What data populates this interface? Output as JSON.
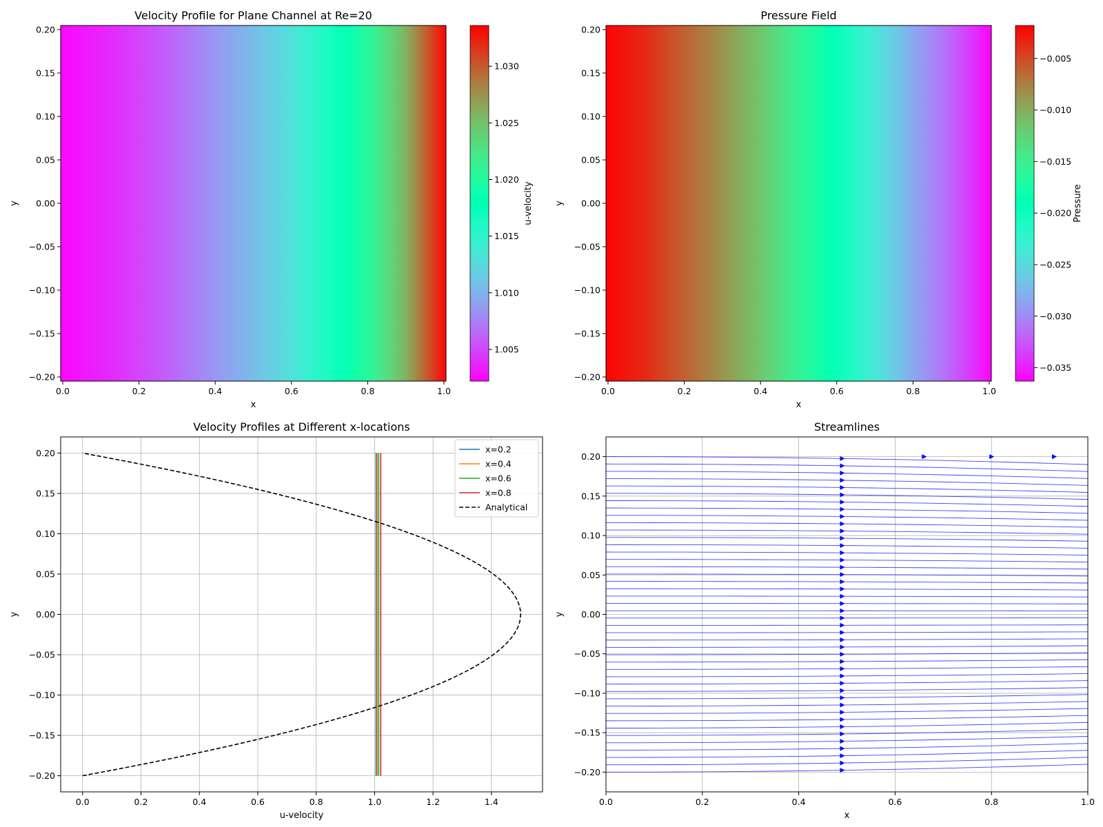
{
  "chart_data": [
    {
      "type": "heatmap",
      "title": "Velocity Profile for Plane Channel at Re=20",
      "xlabel": "x",
      "ylabel": "y",
      "xlim": [
        0,
        1
      ],
      "ylim": [
        -0.2,
        0.2
      ],
      "x_ticks": [
        "0.0",
        "0.2",
        "0.4",
        "0.6",
        "0.8",
        "1.0"
      ],
      "y_ticks": [
        "−0.20",
        "−0.15",
        "−0.10",
        "−0.05",
        "0.00",
        "0.05",
        "0.10",
        "0.15",
        "0.20"
      ],
      "field_x": [
        0.0,
        0.1,
        0.2,
        0.3,
        0.4,
        0.5,
        0.6,
        0.7,
        0.8,
        0.9,
        0.95,
        1.0
      ],
      "field_values": [
        1.0025,
        1.0035,
        1.0048,
        1.0065,
        1.0085,
        1.0105,
        1.013,
        1.0165,
        1.0205,
        1.0262,
        1.03,
        1.0335
      ],
      "colormap": "rainbow",
      "colorbar": {
        "label": "u-velocity",
        "range": [
          1.0022,
          1.0336
        ],
        "ticks": [
          1.005,
          1.01,
          1.015,
          1.02,
          1.025,
          1.03
        ],
        "tick_labels": [
          "1.005",
          "1.010",
          "1.015",
          "1.020",
          "1.025",
          "1.030"
        ]
      }
    },
    {
      "type": "heatmap",
      "title": "Pressure Field",
      "xlabel": "x",
      "ylabel": "y",
      "xlim": [
        0,
        1
      ],
      "ylim": [
        -0.2,
        0.2
      ],
      "x_ticks": [
        "0.0",
        "0.2",
        "0.4",
        "0.6",
        "0.8",
        "1.0"
      ],
      "y_ticks": [
        "−0.20",
        "−0.15",
        "−0.10",
        "−0.05",
        "0.00",
        "0.05",
        "0.10",
        "0.15",
        "0.20"
      ],
      "field_x": [
        0.0,
        0.1,
        0.2,
        0.3,
        0.4,
        0.5,
        0.6,
        0.7,
        0.8,
        0.9,
        1.0
      ],
      "field_values": [
        -0.002,
        -0.0035,
        -0.006,
        -0.0085,
        -0.0115,
        -0.0155,
        -0.0195,
        -0.024,
        -0.0285,
        -0.032,
        -0.0362
      ],
      "colormap": "rainbow",
      "colorbar": {
        "label": "Pressure",
        "range": [
          -0.0363,
          -0.0018
        ],
        "ticks": [
          -0.005,
          -0.01,
          -0.015,
          -0.02,
          -0.025,
          -0.03,
          -0.035
        ],
        "tick_labels": [
          "−0.005",
          "−0.010",
          "−0.015",
          "−0.020",
          "−0.025",
          "−0.030",
          "−0.035"
        ]
      }
    },
    {
      "type": "line",
      "title": "Velocity Profiles at Different x-locations",
      "xlabel": "u-velocity",
      "ylabel": "y",
      "xlim": [
        -0.075,
        1.575
      ],
      "ylim": [
        -0.22,
        0.22
      ],
      "grid": true,
      "legend": "top-right",
      "x_ticks": [
        0.0,
        0.2,
        0.4,
        0.6,
        0.8,
        1.0,
        1.2,
        1.4
      ],
      "x_tick_labels": [
        "0.0",
        "0.2",
        "0.4",
        "0.6",
        "0.8",
        "1.0",
        "1.2",
        "1.4"
      ],
      "y_ticks": [
        -0.2,
        -0.15,
        -0.1,
        -0.05,
        0.0,
        0.05,
        0.1,
        0.15,
        0.2
      ],
      "y_tick_labels": [
        "−0.20",
        "−0.15",
        "−0.10",
        "−0.05",
        "0.00",
        "0.05",
        "0.10",
        "0.15",
        "0.20"
      ],
      "series": [
        {
          "name": "x=0.2",
          "color": "#1f77b4",
          "style": "solid",
          "u": [
            1.005,
            1.005
          ],
          "y": [
            -0.2,
            0.2
          ]
        },
        {
          "name": "x=0.4",
          "color": "#ff7f0e",
          "style": "solid",
          "u": [
            1.009,
            1.009
          ],
          "y": [
            -0.2,
            0.2
          ]
        },
        {
          "name": "x=0.6",
          "color": "#2ca02c",
          "style": "solid",
          "u": [
            1.014,
            1.014
          ],
          "y": [
            -0.2,
            0.2
          ]
        },
        {
          "name": "x=0.8",
          "color": "#d62728",
          "style": "solid",
          "u": [
            1.021,
            1.021
          ],
          "y": [
            -0.2,
            0.2
          ]
        },
        {
          "name": "Analytical",
          "color": "#000000",
          "style": "dashed",
          "formula": "u = 1.5*(1-(y/0.2)^2)",
          "y_range": [
            -0.2,
            0.2
          ]
        }
      ]
    },
    {
      "type": "streamlines",
      "title": "Streamlines",
      "xlabel": "x",
      "ylabel": "y",
      "xlim": [
        0,
        1
      ],
      "ylim": [
        -0.225,
        0.225
      ],
      "grid": true,
      "line_color": "#0000ff",
      "x_ticks": [
        0.0,
        0.2,
        0.4,
        0.6,
        0.8,
        1.0
      ],
      "x_tick_labels": [
        "0.0",
        "0.2",
        "0.4",
        "0.6",
        "0.8",
        "1.0"
      ],
      "y_ticks": [
        -0.2,
        -0.15,
        -0.1,
        -0.05,
        0.0,
        0.05,
        0.1,
        0.15,
        0.2
      ],
      "y_tick_labels": [
        "−0.20",
        "−0.15",
        "−0.10",
        "−0.05",
        "0.00",
        "0.05",
        "0.10",
        "0.15",
        "0.20"
      ],
      "arrow_x": 0.49,
      "top_arrows_x": [
        0.66,
        0.8,
        0.93
      ]
    }
  ]
}
